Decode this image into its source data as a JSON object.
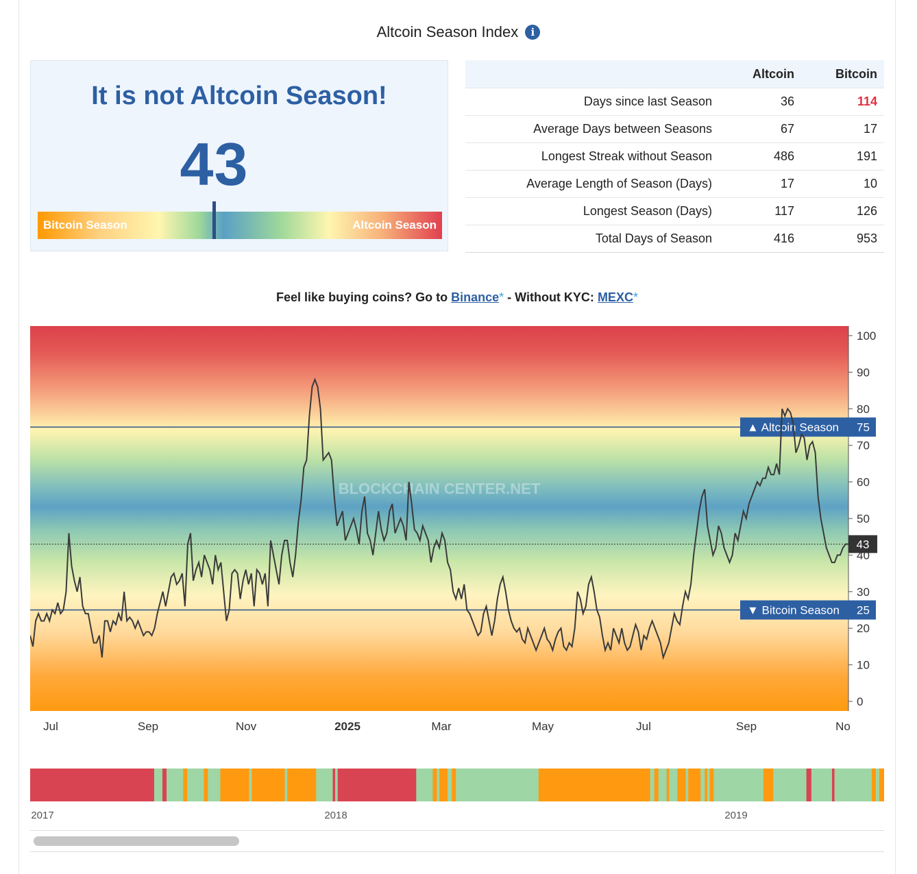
{
  "page": {
    "title": "Altcoin Season Index",
    "info_icon": "info-icon"
  },
  "season": {
    "headline": "It is not Altcoin Season!",
    "index_value": "43",
    "gauge_left_label": "Bitcoin Season",
    "gauge_right_label": "Altcoin Season",
    "gauge_level_percent": 43
  },
  "stats": {
    "headers": [
      "",
      "Altcoin",
      "Bitcoin"
    ],
    "rows": [
      {
        "label": "Days since last Season",
        "altcoin": "36",
        "bitcoin": "114"
      },
      {
        "label": "Average Days between Seasons",
        "altcoin": "67",
        "bitcoin": "17"
      },
      {
        "label": "Longest Streak without Season",
        "altcoin": "486",
        "bitcoin": "191"
      },
      {
        "label": "Average Length of Season (Days)",
        "altcoin": "17",
        "bitcoin": "10"
      },
      {
        "label": "Longest Season (Days)",
        "altcoin": "117",
        "bitcoin": "126"
      },
      {
        "label": "Total Days of Season",
        "altcoin": "416",
        "bitcoin": "953"
      }
    ],
    "highlight_color": "#e03040"
  },
  "promo": {
    "text_before": "Feel like buying coins? Go to ",
    "link1": "Binance",
    "star": "*",
    "middle": " - Without KYC: ",
    "link2": "MEXC"
  },
  "chart_data": {
    "type": "line",
    "watermark": "BLOCKCHAIN CENTER.NET",
    "ylim": [
      0,
      100
    ],
    "yticks": [
      0,
      10,
      20,
      30,
      40,
      50,
      60,
      70,
      80,
      90,
      100
    ],
    "xticks": [
      "Jul",
      "Sep",
      "Nov",
      "2025",
      "Mar",
      "May",
      "Jul",
      "Sep",
      "No"
    ],
    "current_value": 43,
    "thresholds": [
      {
        "label": "▲ Altcoin Season",
        "value": 75
      },
      {
        "label": "▼ Bitcoin Season",
        "value": 25
      }
    ],
    "series": [
      {
        "values": [
          18,
          15,
          22,
          24,
          22,
          22,
          24,
          22,
          25,
          24,
          27,
          24,
          25,
          30,
          46,
          37,
          33,
          30,
          34,
          26,
          24,
          24,
          20,
          16,
          16,
          18,
          12,
          22,
          22,
          19,
          22,
          21,
          24,
          22,
          30,
          22,
          23,
          22,
          20,
          22,
          20,
          18,
          19,
          19,
          18,
          20,
          24,
          27,
          30,
          26,
          30,
          34,
          35,
          32,
          33,
          35,
          26,
          43,
          46,
          33,
          36,
          38,
          34,
          40,
          38,
          36,
          32,
          40,
          36,
          38,
          30,
          22,
          25,
          35,
          36,
          35,
          28,
          33,
          36,
          32,
          35,
          26,
          36,
          35,
          32,
          35,
          26,
          44,
          40,
          36,
          32,
          40,
          44,
          44,
          38,
          34,
          40,
          49,
          55,
          64,
          66,
          78,
          86,
          88,
          86,
          80,
          66,
          67,
          68,
          66,
          56,
          48,
          50,
          52,
          44,
          46,
          48,
          50,
          47,
          43,
          52,
          56,
          46,
          44,
          40,
          46,
          52,
          47,
          44,
          46,
          52,
          54,
          46,
          48,
          50,
          48,
          44,
          60,
          54,
          47,
          46,
          44,
          48,
          46,
          44,
          38,
          42,
          44,
          42,
          46,
          44,
          38,
          36,
          30,
          28,
          31,
          28,
          32,
          25,
          24,
          22,
          20,
          18,
          19,
          24,
          26,
          22,
          18,
          22,
          28,
          32,
          34,
          30,
          25,
          22,
          20,
          19,
          20,
          17,
          16,
          20,
          18,
          16,
          14,
          16,
          18,
          20,
          17,
          16,
          14,
          17,
          19,
          20,
          15,
          14,
          16,
          15,
          20,
          30,
          28,
          24,
          26,
          32,
          34,
          30,
          25,
          23,
          18,
          14,
          16,
          14,
          20,
          18,
          16,
          20,
          16,
          14,
          15,
          18,
          21,
          19,
          14,
          18,
          17,
          20,
          22,
          20,
          18,
          16,
          12,
          14,
          16,
          20,
          24,
          22,
          21,
          26,
          30,
          28,
          32,
          40,
          46,
          52,
          56,
          58,
          48,
          44,
          40,
          42,
          48,
          46,
          42,
          40,
          38,
          40,
          46,
          44,
          48,
          52,
          50,
          54,
          56,
          58,
          60,
          59,
          61,
          61,
          64,
          62,
          62,
          65,
          62,
          80,
          78,
          80,
          79,
          76,
          68,
          70,
          73,
          72,
          66,
          70,
          71,
          68,
          56,
          50,
          46,
          42,
          40,
          38,
          38,
          40,
          40,
          42,
          43,
          43
        ]
      }
    ]
  },
  "navigator": {
    "labels": [
      "2017",
      "2018",
      "2019"
    ],
    "colors": {
      "altcoin": "#d94452",
      "bitcoin": "#ff9a10",
      "neutral": "#9ed6a6"
    },
    "segments": [
      [
        "altcoin",
        15
      ],
      [
        "neutral",
        1
      ],
      [
        "altcoin",
        0.5
      ],
      [
        "neutral",
        2
      ],
      [
        "bitcoin",
        0.5
      ],
      [
        "neutral",
        2
      ],
      [
        "bitcoin",
        0.5
      ],
      [
        "neutral",
        1.5
      ],
      [
        "bitcoin",
        3.5
      ],
      [
        "neutral",
        0.3
      ],
      [
        "bitcoin",
        4
      ],
      [
        "neutral",
        0.3
      ],
      [
        "bitcoin",
        3.5
      ],
      [
        "neutral",
        2
      ],
      [
        "altcoin",
        0.3
      ],
      [
        "neutral",
        0.3
      ],
      [
        "altcoin",
        9.5
      ],
      [
        "neutral",
        2
      ],
      [
        "bitcoin",
        0.5
      ],
      [
        "neutral",
        0.3
      ],
      [
        "bitcoin",
        1
      ],
      [
        "neutral",
        0.5
      ],
      [
        "bitcoin",
        0.5
      ],
      [
        "neutral",
        10
      ],
      [
        "bitcoin",
        13.5
      ],
      [
        "neutral",
        0.5
      ],
      [
        "bitcoin",
        0.5
      ],
      [
        "neutral",
        1
      ],
      [
        "bitcoin",
        0.3
      ],
      [
        "neutral",
        1
      ],
      [
        "bitcoin",
        1
      ],
      [
        "neutral",
        0.3
      ],
      [
        "bitcoin",
        1.5
      ],
      [
        "neutral",
        0.5
      ],
      [
        "bitcoin",
        0.3
      ],
      [
        "neutral",
        0.3
      ],
      [
        "bitcoin",
        0.5
      ],
      [
        "neutral",
        6
      ],
      [
        "bitcoin",
        1.2
      ],
      [
        "neutral",
        4
      ],
      [
        "altcoin",
        0.6
      ],
      [
        "neutral",
        2.5
      ],
      [
        "altcoin",
        0.3
      ],
      [
        "neutral",
        4.5
      ],
      [
        "bitcoin",
        0.5
      ],
      [
        "neutral",
        0.4
      ],
      [
        "bitcoin",
        0.6
      ]
    ]
  }
}
